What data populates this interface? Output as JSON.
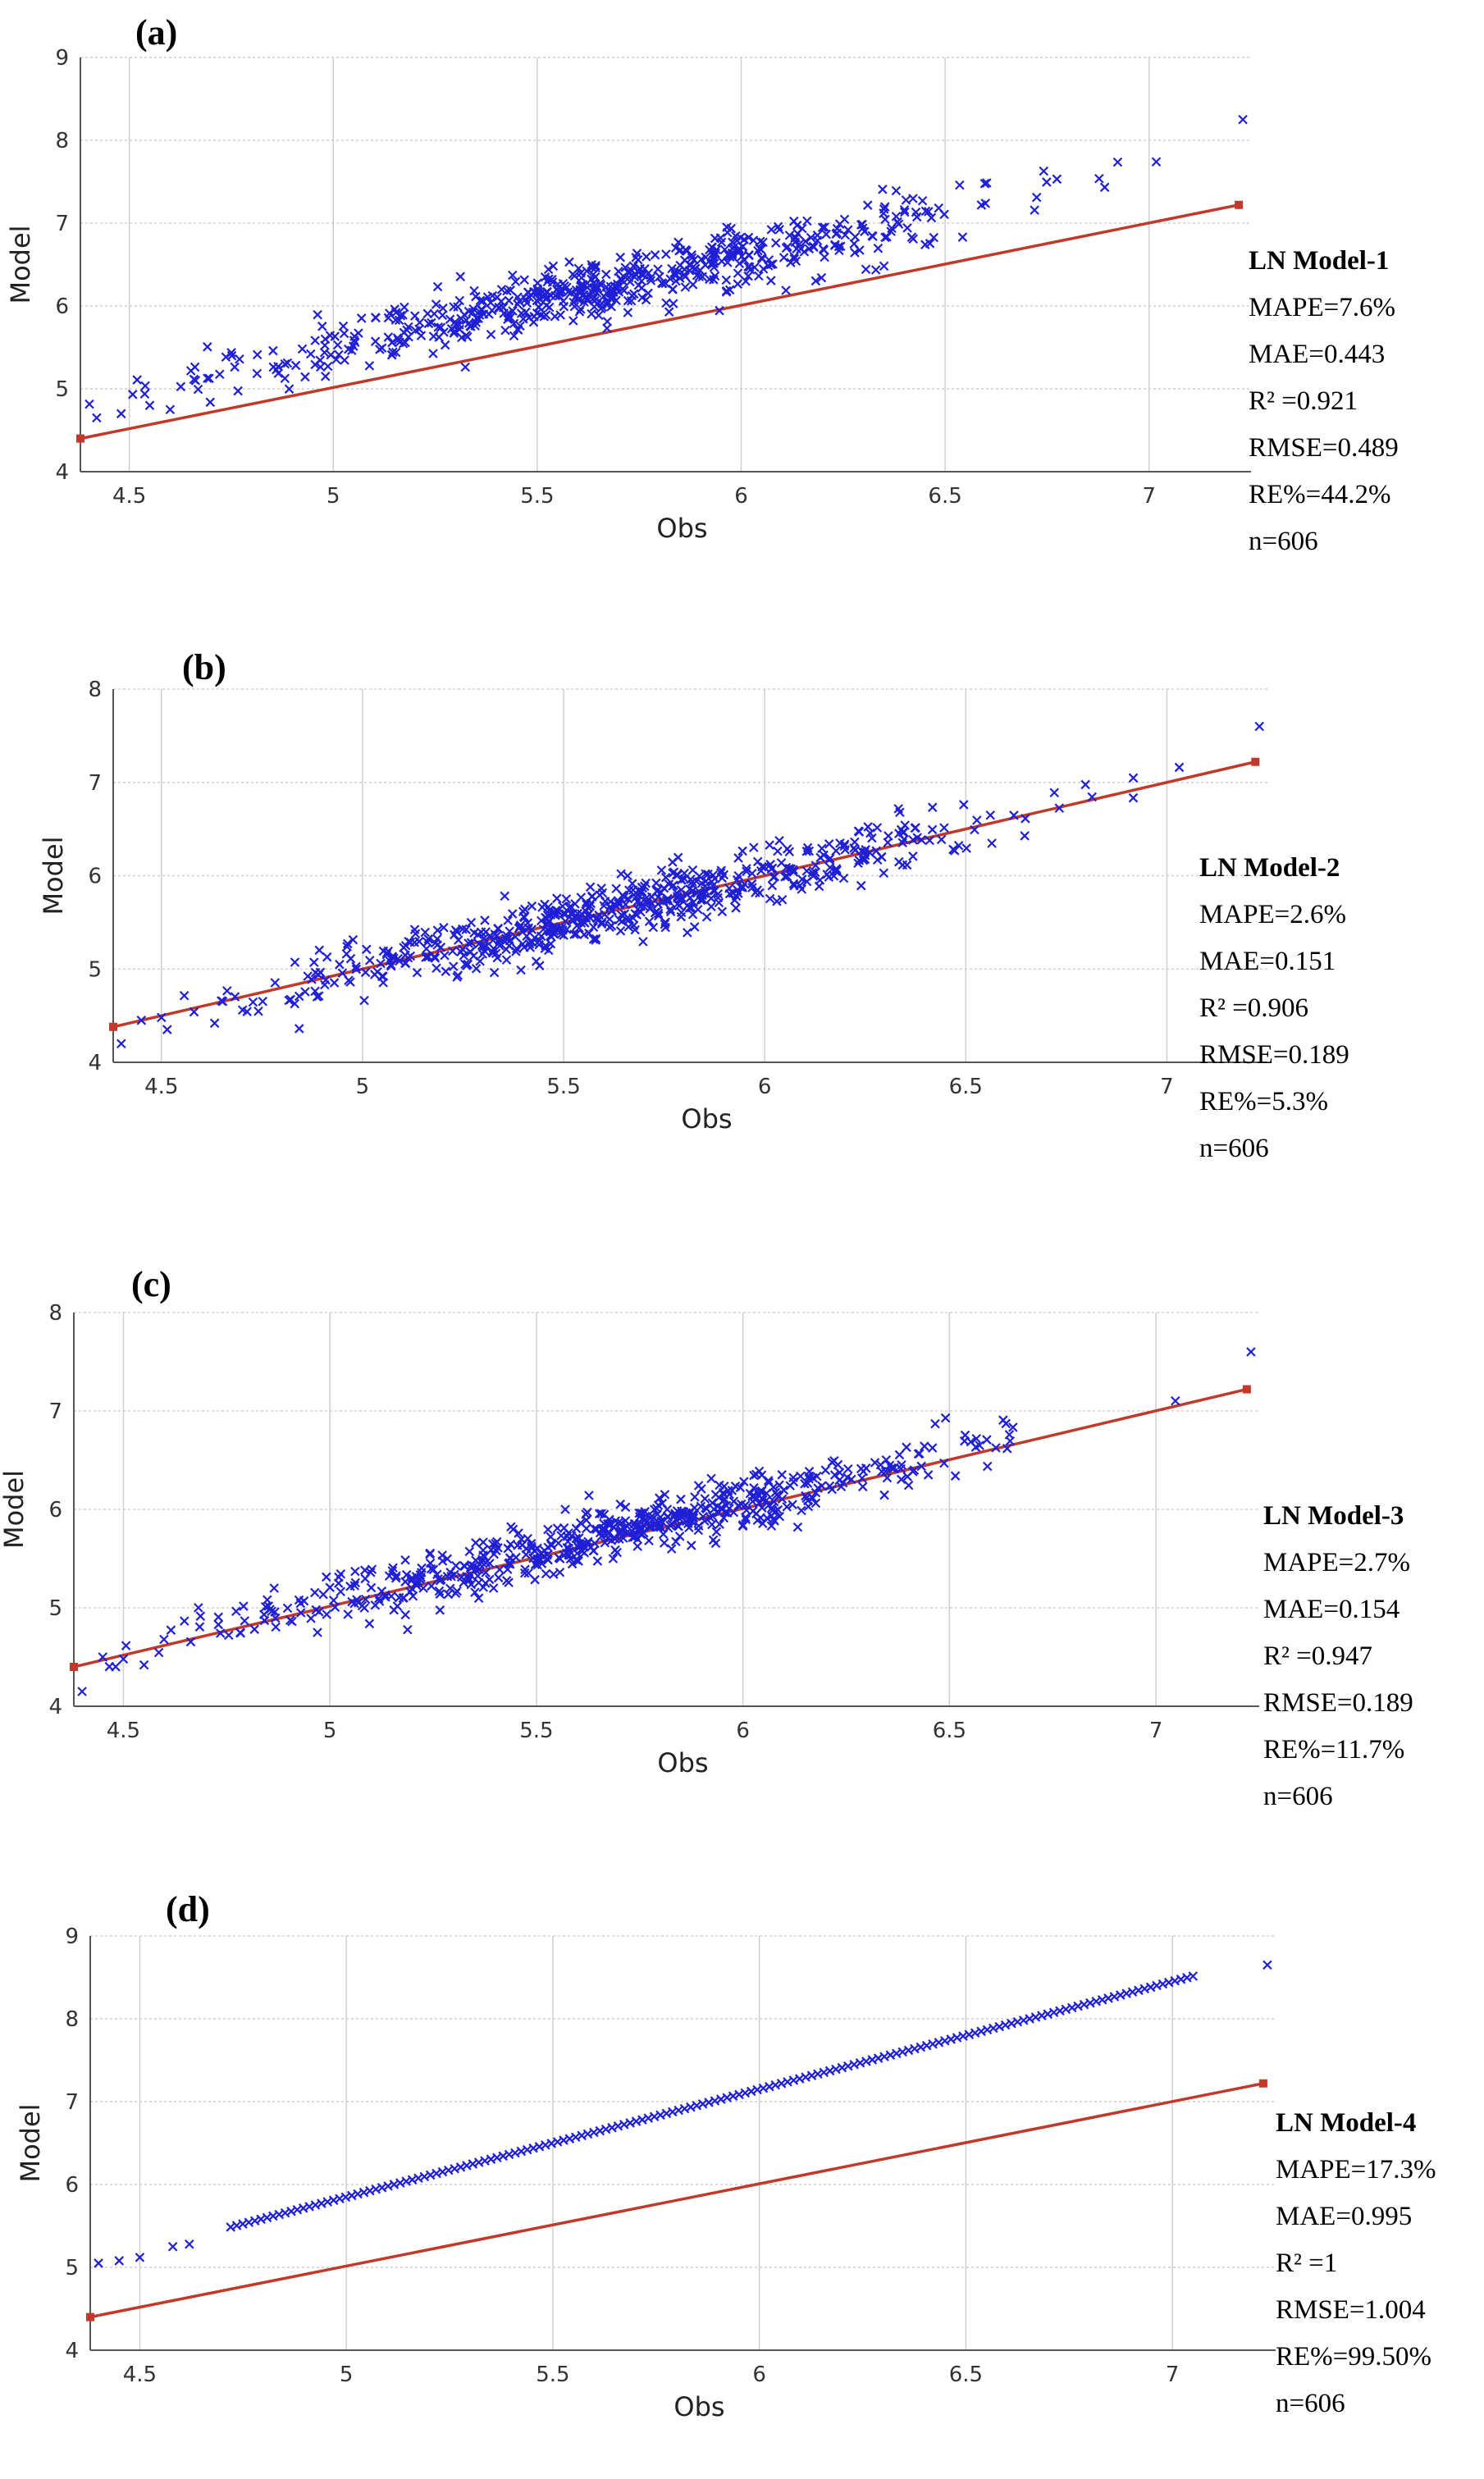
{
  "chart_data": [
    {
      "type": "scatter",
      "panel_label": "(a)",
      "xlabel": "Obs",
      "ylabel": "Model",
      "xlim": [
        4.38,
        7.25
      ],
      "ylim": [
        4,
        9
      ],
      "xticks": [
        "4.5",
        "5",
        "5.5",
        "6",
        "6.5",
        "7"
      ],
      "xtick_values": [
        4.5,
        5,
        5.5,
        6,
        6.5,
        7
      ],
      "yticks": [
        "4",
        "5",
        "6",
        "7",
        "8",
        "9"
      ],
      "ytick_values": [
        4,
        5,
        6,
        7,
        8,
        9
      ],
      "series": [
        {
          "name": "points",
          "fit": {
            "slope": 1.08,
            "intercept": 0.12,
            "spread": 0.18,
            "x_min": 4.4,
            "x_max": 7.05,
            "count": 606
          },
          "extra_points": [
            [
              7.23,
              8.25
            ],
            [
              4.42,
              4.65
            ],
            [
              4.48,
              4.7
            ],
            [
              4.55,
              4.8
            ],
            [
              4.6,
              4.75
            ]
          ]
        },
        {
          "name": "1:1 line",
          "line": [
            [
              4.38,
              4.4
            ],
            [
              7.22,
              7.22
            ]
          ]
        }
      ],
      "stats": {
        "title": "LN Model-1",
        "lines": [
          "MAPE=7.6%",
          "MAE=0.443",
          "R² =0.921",
          "RMSE=0.489",
          "RE%=44.2%",
          "n=606"
        ]
      }
    },
    {
      "type": "scatter",
      "panel_label": "(b)",
      "xlabel": "Obs",
      "ylabel": "Model",
      "xlim": [
        4.38,
        7.25
      ],
      "ylim": [
        4,
        8
      ],
      "xticks": [
        "4.5",
        "5",
        "5.5",
        "6",
        "6.5",
        "7"
      ],
      "xtick_values": [
        4.5,
        5,
        5.5,
        6,
        6.5,
        7
      ],
      "yticks": [
        "4",
        "5",
        "6",
        "7",
        "8"
      ],
      "ytick_values": [
        4,
        5,
        6,
        7,
        8
      ],
      "series": [
        {
          "name": "points",
          "fit": {
            "slope": 1.0,
            "intercept": 0.0,
            "spread": 0.16,
            "x_min": 4.4,
            "x_max": 7.05,
            "count": 606
          },
          "extra_points": [
            [
              7.23,
              7.6
            ],
            [
              4.4,
              4.2
            ],
            [
              4.45,
              4.45
            ],
            [
              4.5,
              4.48
            ]
          ]
        },
        {
          "name": "1:1 line",
          "line": [
            [
              4.38,
              4.38
            ],
            [
              7.22,
              7.22
            ]
          ]
        }
      ],
      "stats": {
        "title": "LN Model-2",
        "lines": [
          "MAPE=2.6%",
          "MAE=0.151",
          "R² =0.906",
          "RMSE=0.189",
          "RE%=5.3%",
          "n=606"
        ]
      }
    },
    {
      "type": "scatter",
      "panel_label": "(c)",
      "xlabel": "Obs",
      "ylabel": "Model",
      "xlim": [
        4.38,
        7.25
      ],
      "ylim": [
        4,
        8
      ],
      "xticks": [
        "4.5",
        "5",
        "5.5",
        "6",
        "6.5",
        "7"
      ],
      "xtick_values": [
        4.5,
        5,
        5.5,
        6,
        6.5,
        7
      ],
      "yticks": [
        "4",
        "5",
        "6",
        "7",
        "8"
      ],
      "ytick_values": [
        4,
        5,
        6,
        7,
        8
      ],
      "series": [
        {
          "name": "points",
          "fit": {
            "slope": 1.02,
            "intercept": -0.05,
            "spread": 0.14,
            "x_min": 4.4,
            "x_max": 7.05,
            "count": 606
          },
          "extra_points": [
            [
              7.23,
              7.6
            ],
            [
              4.4,
              4.15
            ],
            [
              4.45,
              4.5
            ],
            [
              4.5,
              4.48
            ],
            [
              4.55,
              4.42
            ]
          ]
        },
        {
          "name": "1:1 line",
          "line": [
            [
              4.38,
              4.4
            ],
            [
              7.22,
              7.22
            ]
          ]
        }
      ],
      "stats": {
        "title": "LN Model-3",
        "lines": [
          "MAPE=2.7%",
          "MAE=0.154",
          "R² =0.947",
          "RMSE=0.189",
          "RE%=11.7%",
          "n=606"
        ]
      }
    },
    {
      "type": "scatter",
      "panel_label": "(d)",
      "xlabel": "Obs",
      "ylabel": "Model",
      "xlim": [
        4.38,
        7.25
      ],
      "ylim": [
        4,
        9
      ],
      "xticks": [
        "4.5",
        "5",
        "5.5",
        "6",
        "6.5",
        "7"
      ],
      "xtick_values": [
        4.5,
        5,
        5.5,
        6,
        6.5,
        7
      ],
      "yticks": [
        "4",
        "5",
        "6",
        "7",
        "8",
        "9"
      ],
      "ytick_values": [
        4,
        5,
        6,
        7,
        8,
        9
      ],
      "series": [
        {
          "name": "points",
          "fit": {
            "slope": 1.3,
            "intercept": -0.65,
            "spread": 0.0,
            "x_min": 4.72,
            "x_max": 7.05,
            "count": 160
          },
          "extra_points": [
            [
              4.4,
              5.05
            ],
            [
              4.45,
              5.08
            ],
            [
              4.5,
              5.12
            ],
            [
              4.58,
              5.25
            ],
            [
              4.62,
              5.28
            ],
            [
              7.23,
              8.65
            ]
          ]
        },
        {
          "name": "1:1 line",
          "line": [
            [
              4.38,
              4.4
            ],
            [
              7.22,
              7.22
            ]
          ]
        }
      ],
      "stats": {
        "title": "LN Model-4",
        "lines": [
          "MAPE=17.3%",
          "MAE=0.995",
          "R² =1",
          "RMSE=1.004",
          "RE%=99.50%",
          "n=606"
        ]
      }
    }
  ],
  "colors": {
    "points": "#1f1fd6",
    "line": "#c0392b",
    "grid": "#cfcfcf",
    "axis": "#555555",
    "tick_text": "#333333"
  }
}
